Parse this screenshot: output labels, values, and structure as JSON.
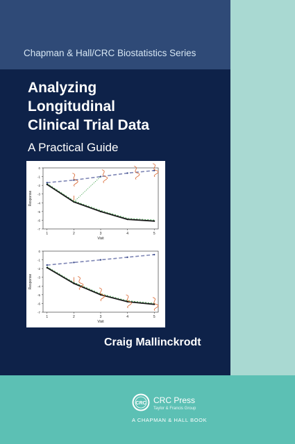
{
  "cover": {
    "series": "Chapman & Hall/CRC Biostatistics Series",
    "title_lines": [
      "Analyzing",
      "Longitudinal",
      "Clinical Trial Data"
    ],
    "subtitle": "A Practical Guide",
    "author": "Craig Mallinckrodt"
  },
  "colors": {
    "navy": "#0e2249",
    "series_band": "#2f4a77",
    "right_strip": "#a9d9d2",
    "bottom_band": "#5cc0b4"
  },
  "figures": {
    "y_label": "Response",
    "x_label": "Visit",
    "x_ticks": [
      "1",
      "2",
      "3",
      "4",
      "5"
    ],
    "y_ticks": [
      "0",
      "-1",
      "-2",
      "-3",
      "-4",
      "-5",
      "-6",
      "-7"
    ]
  },
  "chart_data": [
    {
      "type": "line",
      "xlabel": "Visit",
      "ylabel": "Response",
      "x": [
        1,
        2,
        3,
        4,
        5
      ],
      "ylim": [
        -7,
        0
      ],
      "series": [
        {
          "values": [
            -1.7,
            -1.4,
            -1.0,
            -0.6,
            -0.3
          ]
        },
        {
          "values": [
            -1.9,
            -3.9,
            -5.0,
            -5.9,
            -6.1
          ]
        }
      ]
    },
    {
      "type": "line",
      "xlabel": "Visit",
      "ylabel": "Response",
      "x": [
        1,
        2,
        3,
        4,
        5
      ],
      "ylim": [
        -7,
        0
      ],
      "series": [
        {
          "values": [
            -1.6,
            -1.3,
            -1.0,
            -0.7,
            -0.4
          ]
        },
        {
          "values": [
            -1.9,
            -3.7,
            -5.0,
            -5.8,
            -6.1
          ]
        }
      ]
    }
  ],
  "publisher": {
    "name": "CRC Press",
    "group": "Taylor & Francis Group",
    "imprint": "A CHAPMAN & HALL BOOK",
    "logo_text": "CRC"
  }
}
